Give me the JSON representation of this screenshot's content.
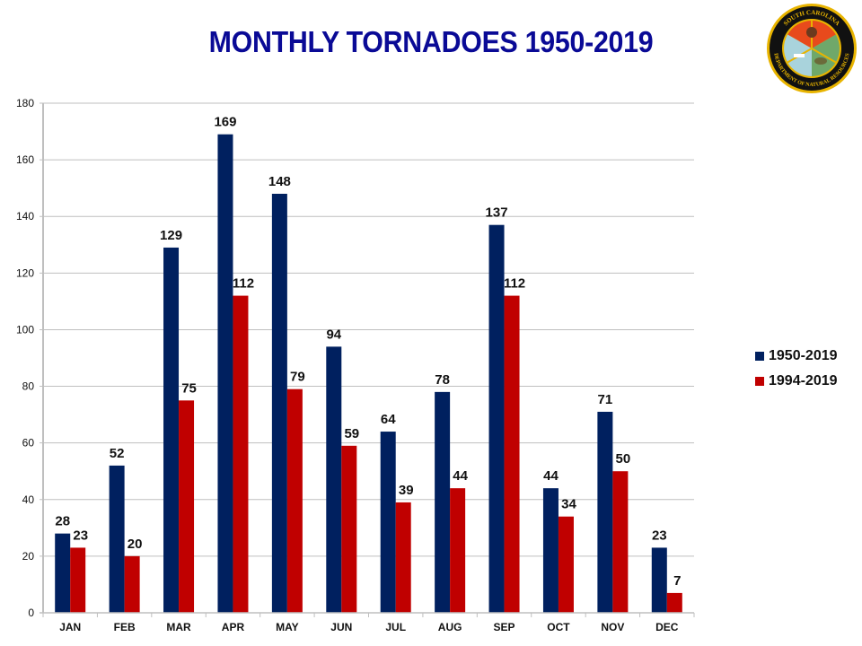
{
  "chart_data": {
    "type": "bar",
    "title": "MONTHLY TORNADOES 1950-2019",
    "xlabel": "",
    "ylabel": "",
    "ylim": [
      0,
      180
    ],
    "yticks": [
      0,
      20,
      40,
      60,
      80,
      100,
      120,
      140,
      160,
      180
    ],
    "grid": true,
    "legend_position": "right",
    "categories": [
      "JAN",
      "FEB",
      "MAR",
      "APR",
      "MAY",
      "JUN",
      "JUL",
      "AUG",
      "SEP",
      "OCT",
      "NOV",
      "DEC"
    ],
    "series": [
      {
        "name": "1950-2019",
        "color": "#00205f",
        "values": [
          28,
          52,
          129,
          169,
          148,
          94,
          64,
          78,
          137,
          44,
          71,
          23
        ]
      },
      {
        "name": "1994-2019",
        "color": "#c00000",
        "values": [
          23,
          20,
          75,
          112,
          79,
          59,
          39,
          44,
          112,
          34,
          50,
          7
        ]
      }
    ]
  },
  "logo": {
    "top_text": "SOUTH CAROLINA",
    "bottom_text": "DEPARTMENT OF NATURAL RESOURCES"
  }
}
